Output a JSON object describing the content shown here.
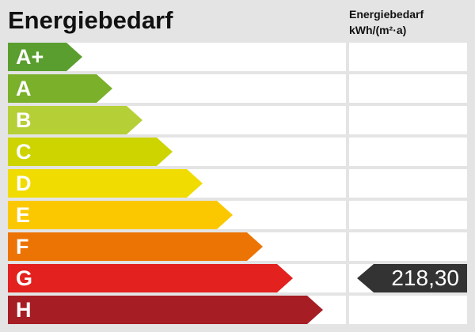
{
  "title": "Energiebedarf",
  "column_header": {
    "line1": "Energiebedarf",
    "line2": "kWh/(m²·a)"
  },
  "classes": [
    {
      "label": "A+",
      "color": "#5a9e2f"
    },
    {
      "label": "A",
      "color": "#7ab02a"
    },
    {
      "label": "B",
      "color": "#b5cf36"
    },
    {
      "label": "C",
      "color": "#cdd400"
    },
    {
      "label": "D",
      "color": "#f0dc00"
    },
    {
      "label": "E",
      "color": "#fbc800"
    },
    {
      "label": "F",
      "color": "#ec7404"
    },
    {
      "label": "G",
      "color": "#e3211f"
    },
    {
      "label": "H",
      "color": "#a71d24"
    }
  ],
  "indicator": {
    "value": "218,30",
    "class": "G",
    "color": "#333333"
  }
}
